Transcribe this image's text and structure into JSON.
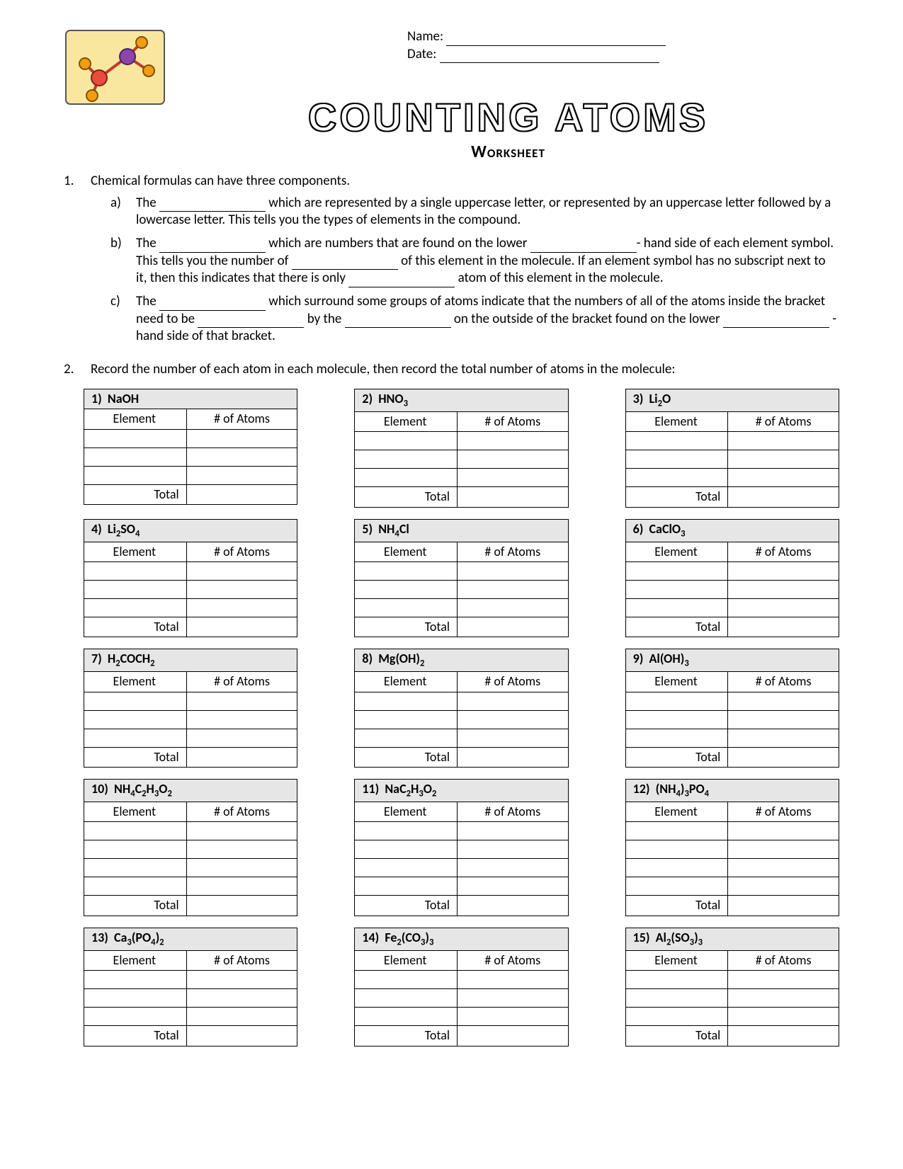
{
  "header": {
    "name_label": "Name:",
    "date_label": "Date:",
    "title": "COUNTING ATOMS",
    "subtitle": "Worksheet"
  },
  "q1": {
    "number": "1.",
    "intro": "Chemical formulas can have three components.",
    "items": [
      {
        "letter": "a)",
        "parts": [
          "The ",
          "__BLANK__",
          " which are represented by a single uppercase letter, or represented by an uppercase letter followed by a lowercase letter.  This tells you the types of elements in the compound."
        ]
      },
      {
        "letter": "b)",
        "parts": [
          "The ",
          "__BLANK__",
          " which are numbers that are found on the lower ",
          "__BLANK__",
          "- hand side of each element symbol.  This tells you the number of ",
          "__BLANK__",
          " of this element in the molecule.  If an element symbol has no subscript next to it, then this indicates that there is only ",
          "__BLANK__",
          " atom of this element in the molecule."
        ]
      },
      {
        "letter": "c)",
        "parts": [
          "The ",
          "__BLANK__",
          " which surround some groups of atoms indicate that the numbers of all of the atoms inside the bracket need to be ",
          "__BLANK__",
          " by the ",
          "__BLANK__",
          " on the outside of the bracket found on the lower ",
          "__BLANK__",
          " - hand side of that bracket."
        ]
      }
    ]
  },
  "q2": {
    "number": "2.",
    "text": "Record the number of each atom in each molecule, then record the total number of atoms in the molecule:"
  },
  "table_headers": {
    "element": "Element",
    "atoms": "# of Atoms",
    "total": "Total"
  },
  "molecules": [
    {
      "num": "1)",
      "formula_html": "NaOH",
      "rows": 3
    },
    {
      "num": "2)",
      "formula_html": "HNO<sub>3</sub>",
      "rows": 3
    },
    {
      "num": "3)",
      "formula_html": "Li<sub>2</sub>O",
      "rows": 3
    },
    {
      "num": "4)",
      "formula_html": "Li<sub>2</sub>SO<sub>4</sub>",
      "rows": 3
    },
    {
      "num": "5)",
      "formula_html": "NH<sub>4</sub>Cl",
      "rows": 3
    },
    {
      "num": "6)",
      "formula_html": "CaClO<sub>3</sub>",
      "rows": 3
    },
    {
      "num": "7)",
      "formula_html": "H<sub>2</sub>COCH<sub>2</sub>",
      "rows": 3
    },
    {
      "num": "8)",
      "formula_html": "Mg(OH)<sub>2</sub>",
      "rows": 3
    },
    {
      "num": "9)",
      "formula_html": "Al(OH)<sub>3</sub>",
      "rows": 3
    },
    {
      "num": "10)",
      "formula_html": "NH<sub>4</sub>C<sub>2</sub>H<sub>3</sub>O<sub>2</sub>",
      "rows": 4
    },
    {
      "num": "11)",
      "formula_html": "NaC<sub>2</sub>H<sub>3</sub>O<sub>2</sub>",
      "rows": 4
    },
    {
      "num": "12)",
      "formula_html": "(NH<sub>4</sub>)<sub>3</sub>PO<sub>4</sub>",
      "rows": 4
    },
    {
      "num": "13)",
      "formula_html": "Ca<sub>3</sub>(PO<sub>4</sub>)<sub>2</sub>",
      "rows": 3
    },
    {
      "num": "14)",
      "formula_html": "Fe<sub>2</sub>(CO<sub>3</sub>)<sub>3</sub>",
      "rows": 3
    },
    {
      "num": "15)",
      "formula_html": "Al<sub>2</sub>(SO<sub>3</sub>)<sub>3</sub>",
      "rows": 3
    }
  ],
  "icon_colors": {
    "bg": "#f9e79f",
    "bond": "#c0392b",
    "atom1": "#e74c3c",
    "atom2": "#8e44ad",
    "atom3": "#f39c12"
  }
}
